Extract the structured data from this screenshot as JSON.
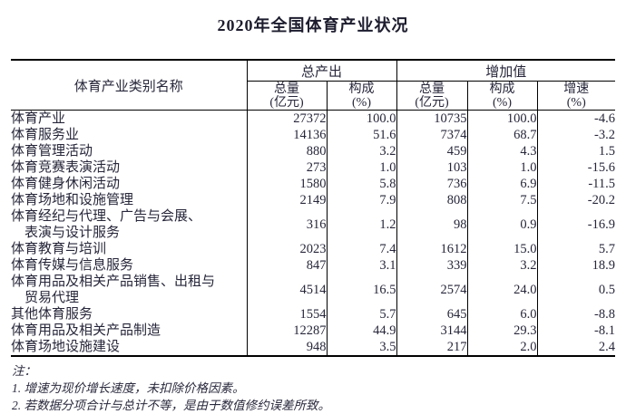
{
  "title": "2020年全国体育产业状况",
  "table": {
    "name_header": "体育产业类别名称",
    "groups": [
      {
        "label": "总产出"
      },
      {
        "label": "增加值"
      }
    ],
    "sub_headers": [
      "总量\n(亿元)",
      "构成\n(%)",
      "总量\n(亿元)",
      "构成\n(%)",
      "增速\n(%)"
    ],
    "rows": [
      {
        "label": "体育产业",
        "indent": 0,
        "values": [
          "27372",
          "100.0",
          "10735",
          "100.0",
          "-4.6"
        ]
      },
      {
        "label": "体育服务业",
        "indent": 1,
        "values": [
          "14136",
          "51.6",
          "7374",
          "68.7",
          "-3.2"
        ]
      },
      {
        "label": "体育管理活动",
        "indent": 2,
        "values": [
          "880",
          "3.2",
          "459",
          "4.3",
          "1.5"
        ]
      },
      {
        "label": "体育竞赛表演活动",
        "indent": 2,
        "values": [
          "273",
          "1.0",
          "103",
          "1.0",
          "-15.6"
        ]
      },
      {
        "label": "体育健身休闲活动",
        "indent": 2,
        "values": [
          "1580",
          "5.8",
          "736",
          "6.9",
          "-11.5"
        ]
      },
      {
        "label": "体育场地和设施管理",
        "indent": 2,
        "values": [
          "2149",
          "7.9",
          "808",
          "7.5",
          "-20.2"
        ]
      },
      {
        "label": "体育经纪与代理、广告与会展、\n　表演与设计服务",
        "indent": 2,
        "values": [
          "316",
          "1.2",
          "98",
          "0.9",
          "-16.9"
        ]
      },
      {
        "label": "体育教育与培训",
        "indent": 2,
        "values": [
          "2023",
          "7.4",
          "1612",
          "15.0",
          "5.7"
        ]
      },
      {
        "label": "体育传媒与信息服务",
        "indent": 2,
        "values": [
          "847",
          "3.1",
          "339",
          "3.2",
          "18.9"
        ]
      },
      {
        "label": "体育用品及相关产品销售、出租与\n　贸易代理",
        "indent": 2,
        "values": [
          "4514",
          "16.5",
          "2574",
          "24.0",
          "0.5"
        ]
      },
      {
        "label": "其他体育服务",
        "indent": 2,
        "values": [
          "1554",
          "5.7",
          "645",
          "6.0",
          "-8.8"
        ]
      },
      {
        "label": "体育用品及相关产品制造",
        "indent": 1,
        "values": [
          "12287",
          "44.9",
          "3144",
          "29.3",
          "-8.1"
        ]
      },
      {
        "label": "体育场地设施建设",
        "indent": 1,
        "values": [
          "948",
          "3.5",
          "217",
          "2.0",
          "2.4"
        ]
      }
    ]
  },
  "notes": {
    "heading": "注：",
    "items": [
      "1. 增速为现价增长速度，未扣除价格因素。",
      "2. 若数据分项合计与总计不等，是由于数值修约误差所致。"
    ]
  },
  "colors": {
    "background": "#ffffff",
    "text": "#26263a",
    "border": "#000000"
  }
}
